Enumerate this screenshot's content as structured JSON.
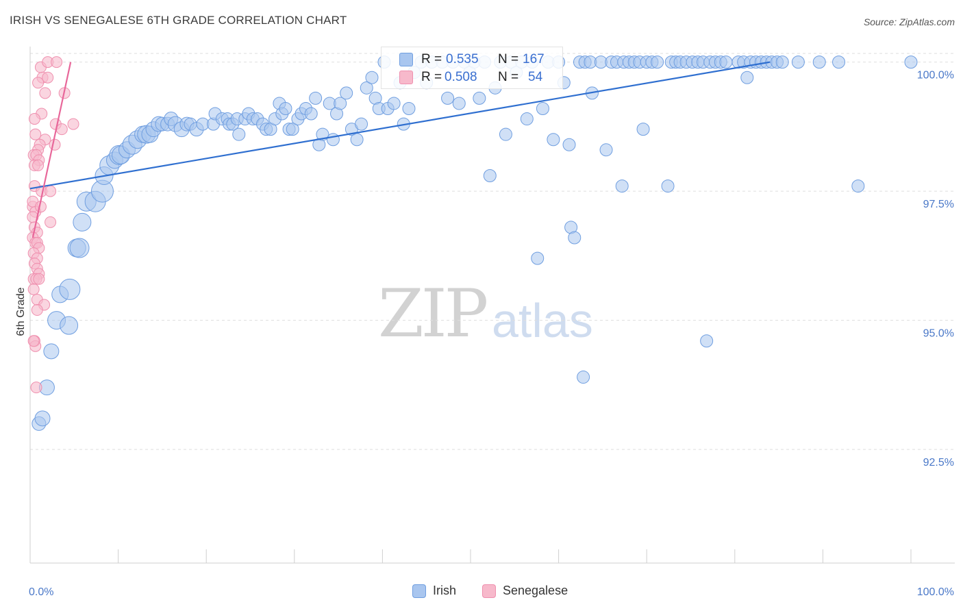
{
  "title": "IRISH VS SENEGALESE 6TH GRADE CORRELATION CHART",
  "source": "Source: ZipAtlas.com",
  "watermark": {
    "zip": "ZIP",
    "atlas": "atlas"
  },
  "colors": {
    "irish_fill": "#a9c6ef",
    "irish_stroke": "#6f9ee0",
    "irish_line": "#2f6fd0",
    "seneg_fill": "#f7b9cb",
    "seneg_stroke": "#ef8fae",
    "seneg_line": "#e8679a",
    "grid": "#dedede",
    "tick_text": "#4a78c8"
  },
  "stats": {
    "irish": {
      "r_label": "R =",
      "r_value": "0.535",
      "n_label": "N =",
      "n_value": "167"
    },
    "senegalese": {
      "r_label": "R =",
      "r_value": "0.508",
      "n_label": "N =",
      "n_value": "54"
    }
  },
  "legend": {
    "irish": "Irish",
    "senegalese": "Senegalese"
  },
  "chart_data": {
    "type": "scatter",
    "title": "IRISH VS SENEGALESE 6TH GRADE CORRELATION CHART",
    "xlabel": "",
    "ylabel": "6th Grade",
    "xlim": [
      0,
      100
    ],
    "ylim": [
      90.3,
      100.3
    ],
    "x_tick_labels": [
      "0.0%",
      "100.0%"
    ],
    "y_ticks": [
      {
        "value": 92.5,
        "label": "92.5%"
      },
      {
        "value": 95.0,
        "label": "95.0%"
      },
      {
        "value": 97.5,
        "label": "97.5%"
      },
      {
        "value": 100.0,
        "label": "100.0%"
      }
    ],
    "series": [
      {
        "name": "Irish",
        "trend": {
          "x": [
            0,
            84
          ],
          "y": [
            97.55,
            100.0
          ]
        },
        "points": [
          [
            1.0,
            93.0,
            10
          ],
          [
            1.4,
            93.1,
            11
          ],
          [
            1.9,
            93.7,
            11
          ],
          [
            2.4,
            94.4,
            11
          ],
          [
            3.0,
            95.0,
            13
          ],
          [
            3.4,
            95.5,
            12
          ],
          [
            4.4,
            94.9,
            13
          ],
          [
            4.5,
            95.6,
            15
          ],
          [
            5.3,
            96.4,
            13
          ],
          [
            5.6,
            96.4,
            14
          ],
          [
            5.9,
            96.9,
            13
          ],
          [
            6.4,
            97.3,
            14
          ],
          [
            7.4,
            97.3,
            15
          ],
          [
            8.2,
            97.5,
            16
          ],
          [
            8.4,
            97.8,
            13
          ],
          [
            9.0,
            98.0,
            14
          ],
          [
            9.6,
            98.1,
            12
          ],
          [
            10.1,
            98.2,
            14
          ],
          [
            10.3,
            98.2,
            13
          ],
          [
            11.0,
            98.3,
            12
          ],
          [
            11.6,
            98.4,
            14
          ],
          [
            12.2,
            98.5,
            13
          ],
          [
            12.8,
            98.6,
            12
          ],
          [
            13.2,
            98.6,
            13
          ],
          [
            13.6,
            98.6,
            12
          ],
          [
            14.0,
            98.7,
            11
          ],
          [
            14.6,
            98.8,
            11
          ],
          [
            15.0,
            98.8,
            10
          ],
          [
            15.6,
            98.8,
            10
          ],
          [
            16.0,
            98.9,
            10
          ],
          [
            16.5,
            98.8,
            11
          ],
          [
            17.2,
            98.7,
            11
          ],
          [
            17.8,
            98.8,
            10
          ],
          [
            18.2,
            98.8,
            9
          ],
          [
            18.9,
            98.7,
            10
          ],
          [
            19.6,
            98.8,
            9
          ],
          [
            20.8,
            98.8,
            9
          ],
          [
            21.0,
            99.0,
            9
          ],
          [
            21.8,
            98.9,
            9
          ],
          [
            22.4,
            98.9,
            9
          ],
          [
            22.6,
            98.8,
            9
          ],
          [
            23.0,
            98.8,
            9
          ],
          [
            23.5,
            98.9,
            9
          ],
          [
            23.7,
            98.6,
            9
          ],
          [
            24.4,
            98.9,
            9
          ],
          [
            24.8,
            99.0,
            9
          ],
          [
            25.3,
            98.9,
            9
          ],
          [
            25.8,
            98.9,
            9
          ],
          [
            26.4,
            98.8,
            9
          ],
          [
            26.8,
            98.7,
            9
          ],
          [
            27.3,
            98.7,
            9
          ],
          [
            27.8,
            98.9,
            9
          ],
          [
            28.3,
            99.2,
            9
          ],
          [
            28.6,
            99.0,
            9
          ],
          [
            29.0,
            99.1,
            9
          ],
          [
            29.4,
            98.7,
            9
          ],
          [
            29.8,
            98.7,
            9
          ],
          [
            30.4,
            98.9,
            9
          ],
          [
            30.8,
            99.0,
            9
          ],
          [
            31.3,
            99.1,
            9
          ],
          [
            31.9,
            99.0,
            9
          ],
          [
            32.4,
            99.3,
            9
          ],
          [
            32.8,
            98.4,
            9
          ],
          [
            33.2,
            98.6,
            9
          ],
          [
            34.0,
            99.2,
            9
          ],
          [
            34.4,
            98.5,
            9
          ],
          [
            34.8,
            99.0,
            9
          ],
          [
            35.2,
            99.2,
            9
          ],
          [
            35.9,
            99.4,
            9
          ],
          [
            36.5,
            98.7,
            9
          ],
          [
            37.1,
            98.5,
            9
          ],
          [
            37.6,
            98.8,
            9
          ],
          [
            38.2,
            99.5,
            9
          ],
          [
            38.8,
            99.7,
            9
          ],
          [
            39.2,
            99.3,
            9
          ],
          [
            39.6,
            99.1,
            9
          ],
          [
            40.2,
            100.0,
            9
          ],
          [
            40.6,
            99.1,
            9
          ],
          [
            41.3,
            99.2,
            9
          ],
          [
            42.0,
            99.6,
            9
          ],
          [
            42.4,
            98.8,
            9
          ],
          [
            43.0,
            99.1,
            9
          ],
          [
            43.6,
            99.8,
            9
          ],
          [
            44.4,
            100.0,
            9
          ],
          [
            45.0,
            99.6,
            9
          ],
          [
            45.6,
            100.0,
            9
          ],
          [
            46.8,
            100.0,
            9
          ],
          [
            47.4,
            99.3,
            9
          ],
          [
            48.0,
            100.0,
            9
          ],
          [
            48.7,
            99.2,
            9
          ],
          [
            49.3,
            100.0,
            9
          ],
          [
            49.9,
            99.8,
            9
          ],
          [
            50.4,
            100.0,
            9
          ],
          [
            51.0,
            99.3,
            9
          ],
          [
            51.6,
            100.0,
            9
          ],
          [
            52.2,
            97.8,
            9
          ],
          [
            52.8,
            99.5,
            9
          ],
          [
            53.4,
            100.0,
            9
          ],
          [
            54.0,
            98.6,
            9
          ],
          [
            54.6,
            100.0,
            9
          ],
          [
            55.2,
            99.8,
            9
          ],
          [
            55.8,
            100.0,
            9
          ],
          [
            56.4,
            98.9,
            9
          ],
          [
            57.0,
            100.0,
            9
          ],
          [
            57.6,
            96.2,
            9
          ],
          [
            58.2,
            99.1,
            9
          ],
          [
            58.8,
            100.0,
            9
          ],
          [
            59.4,
            98.5,
            9
          ],
          [
            60.0,
            100.0,
            9
          ],
          [
            60.6,
            99.6,
            9
          ],
          [
            61.2,
            98.4,
            9
          ],
          [
            61.4,
            96.8,
            9
          ],
          [
            61.8,
            96.6,
            9
          ],
          [
            62.4,
            100.0,
            9
          ],
          [
            62.8,
            93.9,
            9
          ],
          [
            63.0,
            100.0,
            9
          ],
          [
            63.6,
            100.0,
            9
          ],
          [
            63.8,
            99.4,
            9
          ],
          [
            64.8,
            100.0,
            9
          ],
          [
            65.4,
            98.3,
            9
          ],
          [
            66.0,
            100.0,
            9
          ],
          [
            66.6,
            100.0,
            9
          ],
          [
            67.2,
            97.6,
            9
          ],
          [
            67.4,
            100.0,
            9
          ],
          [
            68.0,
            100.0,
            9
          ],
          [
            68.6,
            100.0,
            9
          ],
          [
            69.2,
            100.0,
            9
          ],
          [
            69.6,
            98.7,
            9
          ],
          [
            70.0,
            100.0,
            9
          ],
          [
            70.6,
            100.0,
            9
          ],
          [
            71.2,
            100.0,
            9
          ],
          [
            72.4,
            97.6,
            9
          ],
          [
            72.8,
            100.0,
            9
          ],
          [
            73.3,
            100.0,
            9
          ],
          [
            73.8,
            100.0,
            9
          ],
          [
            74.5,
            100.0,
            9
          ],
          [
            75.2,
            100.0,
            9
          ],
          [
            75.8,
            100.0,
            9
          ],
          [
            76.4,
            100.0,
            9
          ],
          [
            76.8,
            94.6,
            9
          ],
          [
            77.2,
            100.0,
            9
          ],
          [
            77.8,
            100.0,
            9
          ],
          [
            78.4,
            100.0,
            9
          ],
          [
            79.0,
            100.0,
            9
          ],
          [
            80.4,
            100.0,
            9
          ],
          [
            81.0,
            100.0,
            9
          ],
          [
            81.4,
            99.7,
            9
          ],
          [
            81.8,
            100.0,
            9
          ],
          [
            82.4,
            100.0,
            9
          ],
          [
            83.0,
            100.0,
            9
          ],
          [
            83.6,
            100.0,
            9
          ],
          [
            84.2,
            100.0,
            9
          ],
          [
            84.8,
            100.0,
            9
          ],
          [
            85.4,
            100.0,
            9
          ],
          [
            87.2,
            100.0,
            9
          ],
          [
            89.6,
            100.0,
            9
          ],
          [
            91.8,
            100.0,
            9
          ],
          [
            94.0,
            97.6,
            9
          ],
          [
            100.0,
            100.0,
            9
          ]
        ]
      },
      {
        "name": "Senegalese",
        "trend": {
          "x": [
            0.3,
            4.6
          ],
          "y": [
            96.6,
            100.0
          ]
        },
        "points": [
          [
            1.2,
            99.9,
            8
          ],
          [
            2.0,
            100.0,
            8
          ],
          [
            3.0,
            100.0,
            8
          ],
          [
            1.4,
            99.7,
            8
          ],
          [
            2.0,
            99.7,
            8
          ],
          [
            0.9,
            99.6,
            8
          ],
          [
            1.7,
            99.4,
            8
          ],
          [
            3.9,
            99.4,
            8
          ],
          [
            1.3,
            99.0,
            8
          ],
          [
            2.9,
            98.8,
            8
          ],
          [
            4.9,
            98.8,
            8
          ],
          [
            3.6,
            98.7,
            8
          ],
          [
            0.6,
            98.6,
            8
          ],
          [
            1.7,
            98.5,
            8
          ],
          [
            2.8,
            98.4,
            8
          ],
          [
            1.1,
            98.4,
            8
          ],
          [
            0.9,
            98.3,
            8
          ],
          [
            0.4,
            98.2,
            8
          ],
          [
            0.7,
            98.2,
            8
          ],
          [
            1.0,
            98.1,
            8
          ],
          [
            0.5,
            98.0,
            8
          ],
          [
            0.9,
            98.0,
            8
          ],
          [
            0.5,
            97.6,
            8
          ],
          [
            1.3,
            97.5,
            8
          ],
          [
            2.3,
            97.5,
            8
          ],
          [
            0.3,
            97.2,
            8
          ],
          [
            0.6,
            97.1,
            8
          ],
          [
            0.3,
            97.0,
            8
          ],
          [
            2.3,
            96.9,
            8
          ],
          [
            0.5,
            96.8,
            8
          ],
          [
            0.8,
            96.7,
            8
          ],
          [
            0.3,
            96.6,
            8
          ],
          [
            0.6,
            96.5,
            8
          ],
          [
            0.8,
            96.5,
            8
          ],
          [
            1.0,
            96.4,
            8
          ],
          [
            0.4,
            96.3,
            8
          ],
          [
            0.8,
            96.2,
            8
          ],
          [
            0.5,
            96.1,
            8
          ],
          [
            0.8,
            96.0,
            8
          ],
          [
            1.0,
            95.9,
            8
          ],
          [
            0.4,
            95.8,
            8
          ],
          [
            0.7,
            95.8,
            8
          ],
          [
            1.0,
            95.8,
            8
          ],
          [
            0.4,
            95.6,
            8
          ],
          [
            0.8,
            95.4,
            8
          ],
          [
            1.6,
            95.3,
            8
          ],
          [
            0.8,
            95.2,
            8
          ],
          [
            0.5,
            94.6,
            8
          ],
          [
            0.6,
            94.5,
            8
          ],
          [
            0.4,
            94.6,
            8
          ],
          [
            0.7,
            93.7,
            8
          ],
          [
            0.5,
            98.9,
            8
          ],
          [
            0.3,
            97.3,
            8
          ],
          [
            1.2,
            97.2,
            8
          ]
        ]
      }
    ]
  }
}
